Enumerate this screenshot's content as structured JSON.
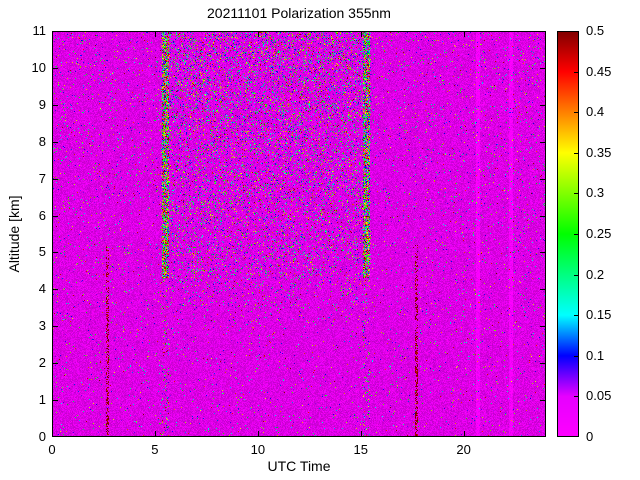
{
  "chart_data": {
    "type": "heatmap",
    "title": "20211101 Polarization 355nm",
    "xlabel": "UTC Time",
    "ylabel": "Altitude [km]",
    "xlim": [
      0,
      24
    ],
    "ylim": [
      0,
      11
    ],
    "x_ticks": [
      0,
      5,
      10,
      15,
      20
    ],
    "x_tick_labels": [
      "0",
      "5",
      "10",
      "15",
      "20"
    ],
    "y_ticks": [
      0,
      1,
      2,
      3,
      4,
      5,
      6,
      7,
      8,
      9,
      10,
      11
    ],
    "y_tick_labels": [
      "0",
      "1",
      "2",
      "3",
      "4",
      "5",
      "6",
      "7",
      "8",
      "9",
      "10",
      "11"
    ],
    "grid": false,
    "legend": "none",
    "colorbar": {
      "min": 0,
      "max": 0.5,
      "ticks": [
        0,
        0.05,
        0.1,
        0.15,
        0.2,
        0.25,
        0.3,
        0.35,
        0.4,
        0.45,
        0.5
      ],
      "tick_labels": [
        "0",
        "0.05",
        "0.1",
        "0.15",
        "0.2",
        "0.25",
        "0.3",
        "0.35",
        "0.4",
        "0.45",
        "0.5"
      ],
      "position": "right"
    },
    "colormap": [
      {
        "v": 0.0,
        "color": "#ff00ff"
      },
      {
        "v": 0.05,
        "color": "#e600ff"
      },
      {
        "v": 0.1,
        "color": "#0000ff"
      },
      {
        "v": 0.15,
        "color": "#00ffff"
      },
      {
        "v": 0.2,
        "color": "#00ff80"
      },
      {
        "v": 0.25,
        "color": "#00ff00"
      },
      {
        "v": 0.3,
        "color": "#80ff00"
      },
      {
        "v": 0.35,
        "color": "#ffff00"
      },
      {
        "v": 0.4,
        "color": "#ff8000"
      },
      {
        "v": 0.45,
        "color": "#ff0000"
      },
      {
        "v": 0.5,
        "color": "#800000"
      }
    ],
    "field": {
      "description": "Depolarization ratio field: mostly near 0 (magenta) with speckle noise; dense multicolor noise columns near sunrise/sunset transitions at UTC ~5.5 and ~15.3; grainy purple noise cone between them above ~3 km increasing with altitude; thin dark-red calibration streaks at UTC ~2.7 and ~17.7 below ~5 km; faint brighter columns near UTC 20.7 and 22.3",
      "background_value_range": [
        0,
        0.04
      ],
      "base_speckle_density": 0.03,
      "altitude_density_gain": 0.05,
      "speckle_value_exponent": 3,
      "central_noise_band": {
        "t_start": 5.3,
        "t_end": 15.5,
        "alt_min": 3.0,
        "ramp_km": 1.8,
        "min_density": 0.1,
        "max_density": 0.32
      },
      "edge_stripes": [
        {
          "t_center": 5.5,
          "t_width": 0.34,
          "alt_min": 4.3,
          "density": 0.85,
          "below_density": 0.22
        },
        {
          "t_center": 15.3,
          "t_width": 0.34,
          "alt_min": 4.3,
          "density": 0.85,
          "below_density": 0.22
        }
      ],
      "dark_streaks": [
        {
          "t_center": 2.7,
          "t_width": 0.14,
          "alt_max": 5.2,
          "density": 0.5,
          "value_min": 0.44,
          "value_max": 0.5
        },
        {
          "t_center": 17.7,
          "t_width": 0.14,
          "alt_max": 5.2,
          "density": 0.55,
          "value_min": 0.44,
          "value_max": 0.5
        }
      ],
      "faint_bright_columns": [
        20.7,
        22.3
      ],
      "seed": 20211101
    }
  }
}
